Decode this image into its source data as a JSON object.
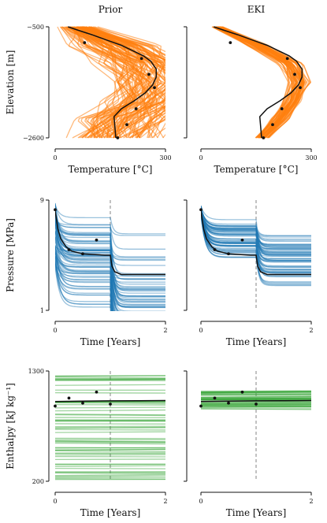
{
  "chart_data": [
    {
      "type": "line",
      "panel": "prior-temperature",
      "column": "Prior",
      "row": "temperature",
      "title": "Prior",
      "xlabel": "Temperature [°C]",
      "ylabel": "Elevation [m]",
      "xlim": [
        0,
        300
      ],
      "ylim": [
        -2600,
        -500
      ],
      "xticks": [
        "0",
        "300"
      ],
      "yticks": [
        "−500",
        "−2600"
      ],
      "ensemble": {
        "color": "#ff7f0e",
        "alpha": 0.55,
        "count": 100,
        "mean_x": [
          60,
          160,
          240,
          265,
          250,
          190,
          160
        ],
        "spread_x": [
          50,
          120,
          135,
          125,
          125,
          140,
          125
        ]
      },
      "truth": {
        "x": [
          35,
          60,
          100,
          140,
          180,
          210,
          240,
          260,
          275,
          275,
          265,
          245,
          215,
          180,
          160,
          165
        ],
        "y": [
          -500,
          -560,
          -650,
          -750,
          -850,
          -950,
          -1050,
          -1150,
          -1300,
          -1450,
          -1600,
          -1750,
          -1900,
          -2050,
          -2200,
          -2600
        ]
      },
      "observations": {
        "x": [
          80,
          235,
          255,
          270,
          220,
          195,
          170
        ],
        "y": [
          -800,
          -1100,
          -1400,
          -1650,
          -2050,
          -2350,
          -2600
        ]
      }
    },
    {
      "type": "line",
      "panel": "eki-temperature",
      "column": "EKI",
      "row": "temperature",
      "title": "EKI",
      "xlabel": "Temperature [°C]",
      "xlim": [
        0,
        300
      ],
      "ylim": [
        -2600,
        -500
      ],
      "xticks": [
        "0",
        "300"
      ],
      "ensemble": {
        "color": "#ff7f0e",
        "alpha": 0.55,
        "count": 60,
        "mean_x": [
          45,
          155,
          245,
          268,
          250,
          215,
          165
        ],
        "spread_x": [
          15,
          30,
          35,
          30,
          25,
          25,
          20
        ]
      },
      "truth": {
        "x": [
          35,
          60,
          100,
          140,
          180,
          210,
          240,
          260,
          275,
          275,
          265,
          245,
          215,
          180,
          160,
          165
        ],
        "y": [
          -500,
          -560,
          -650,
          -750,
          -850,
          -950,
          -1050,
          -1150,
          -1300,
          -1450,
          -1600,
          -1750,
          -1900,
          -2050,
          -2200,
          -2600
        ]
      },
      "observations": {
        "x": [
          80,
          235,
          255,
          270,
          220,
          195,
          170
        ],
        "y": [
          -800,
          -1100,
          -1400,
          -1650,
          -2050,
          -2350,
          -2600
        ]
      }
    },
    {
      "type": "line",
      "panel": "prior-pressure",
      "column": "Prior",
      "row": "pressure",
      "xlabel": "Time [Years]",
      "ylabel": "Pressure [MPa]",
      "xlim": [
        0,
        2
      ],
      "ylim": [
        1,
        9
      ],
      "xticks": [
        "0",
        "2"
      ],
      "yticks": [
        "9",
        "1"
      ],
      "event_line_x": 1.0,
      "ensemble": {
        "color": "#1f77b4",
        "alpha": 0.45,
        "count": 70,
        "p0_range": [
          4.0,
          8.8
        ],
        "drop1_range": [
          0.3,
          3.5
        ],
        "drop2_range": [
          0.4,
          5.5
        ]
      },
      "truth": {
        "x": [
          0,
          0.05,
          0.1,
          0.2,
          0.3,
          0.5,
          0.7,
          0.9,
          1.0,
          1.03,
          1.08,
          1.2,
          2.0
        ],
        "y": [
          8.2,
          6.9,
          6.2,
          5.6,
          5.3,
          5.1,
          5.05,
          5.0,
          5.0,
          4.2,
          3.8,
          3.6,
          3.6
        ]
      },
      "observations": {
        "x": [
          0,
          0.25,
          0.5,
          0.75
        ],
        "y": [
          8.3,
          5.4,
          5.1,
          6.1
        ]
      }
    },
    {
      "type": "line",
      "panel": "eki-pressure",
      "column": "EKI",
      "row": "pressure",
      "xlabel": "Time [Years]",
      "xlim": [
        0,
        2
      ],
      "ylim": [
        1,
        9
      ],
      "xticks": [
        "0",
        "2"
      ],
      "event_line_x": 1.0,
      "ensemble": {
        "color": "#1f77b4",
        "alpha": 0.45,
        "count": 60,
        "p0_range": [
          7.9,
          8.6
        ],
        "drop1_range": [
          1.0,
          3.2
        ],
        "drop2_range": [
          0.5,
          2.5
        ]
      },
      "truth": {
        "x": [
          0,
          0.05,
          0.1,
          0.2,
          0.3,
          0.5,
          0.7,
          0.9,
          1.0,
          1.03,
          1.08,
          1.2,
          2.0
        ],
        "y": [
          8.2,
          6.9,
          6.2,
          5.6,
          5.3,
          5.1,
          5.05,
          5.0,
          5.0,
          4.2,
          3.8,
          3.6,
          3.6
        ]
      },
      "observations": {
        "x": [
          0,
          0.25,
          0.5,
          0.75
        ],
        "y": [
          8.3,
          5.4,
          5.1,
          6.1
        ]
      }
    },
    {
      "type": "line",
      "panel": "prior-enthalpy",
      "column": "Prior",
      "row": "enthalpy",
      "xlabel": "Time [Years]",
      "ylabel": "Enthalpy [kJ kg⁻¹]",
      "xlim": [
        0,
        2
      ],
      "ylim": [
        200,
        1300
      ],
      "xticks": [
        "0",
        "2"
      ],
      "yticks": [
        "1300",
        "200"
      ],
      "event_line_x": 1.0,
      "ensemble": {
        "color": "#2ca02c",
        "alpha": 0.45,
        "count": 60,
        "value_range": [
          205,
          1280
        ]
      },
      "truth": {
        "x": [
          0,
          0.5,
          1.0,
          1.5,
          2.0
        ],
        "y": [
          995,
          1000,
          1002,
          1003,
          1005
        ]
      },
      "observations": {
        "x": [
          0,
          0.25,
          0.5,
          0.75,
          1.0
        ],
        "y": [
          950,
          1030,
          980,
          1090,
          970
        ]
      }
    },
    {
      "type": "line",
      "panel": "eki-enthalpy",
      "column": "EKI",
      "row": "enthalpy",
      "xlabel": "Time [Years]",
      "xlim": [
        0,
        2
      ],
      "ylim": [
        200,
        1300
      ],
      "xticks": [
        "0",
        "2"
      ],
      "event_line_x": 1.0,
      "ensemble": {
        "color": "#2ca02c",
        "alpha": 0.45,
        "count": 40,
        "value_range": [
          920,
          1100
        ]
      },
      "truth": {
        "x": [
          0,
          0.5,
          1.0,
          1.5,
          2.0
        ],
        "y": [
          995,
          1000,
          1002,
          1003,
          1005
        ]
      },
      "observations": {
        "x": [
          0,
          0.25,
          0.5,
          0.75,
          1.0
        ],
        "y": [
          950,
          1030,
          980,
          1090,
          970
        ]
      }
    }
  ]
}
